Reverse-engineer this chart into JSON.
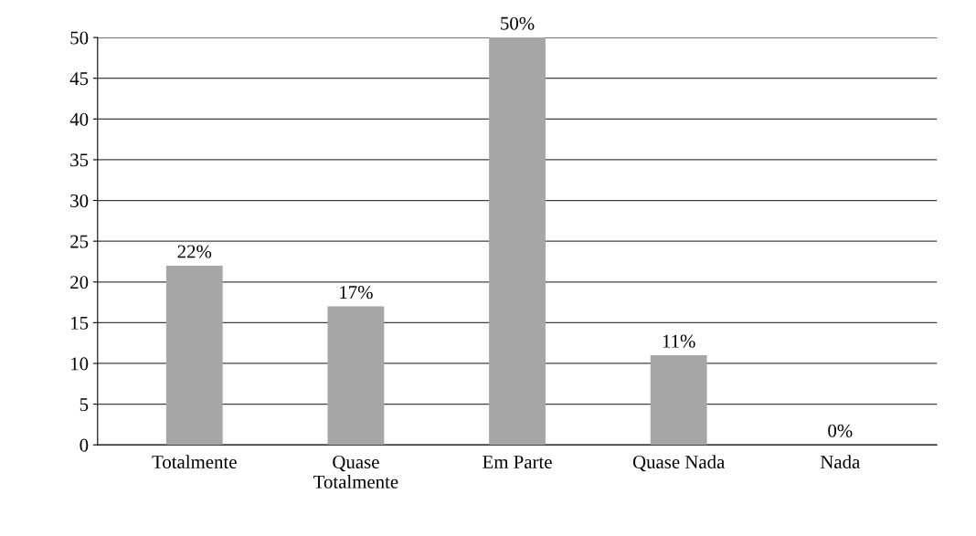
{
  "chart_data": {
    "type": "bar",
    "categories": [
      "Totalmente",
      "Quase\nTotalmente",
      "Em Parte",
      "Quase Nada",
      "Nada"
    ],
    "values": [
      22,
      17,
      50,
      11,
      0
    ],
    "value_labels": [
      "22%",
      "17%",
      "50%",
      "11%",
      "0%"
    ],
    "color": "#a6a6a6",
    "ylim": [
      0,
      50
    ],
    "yticks": [
      0,
      5,
      10,
      15,
      20,
      25,
      30,
      35,
      40,
      45,
      50
    ],
    "grid": "y"
  }
}
